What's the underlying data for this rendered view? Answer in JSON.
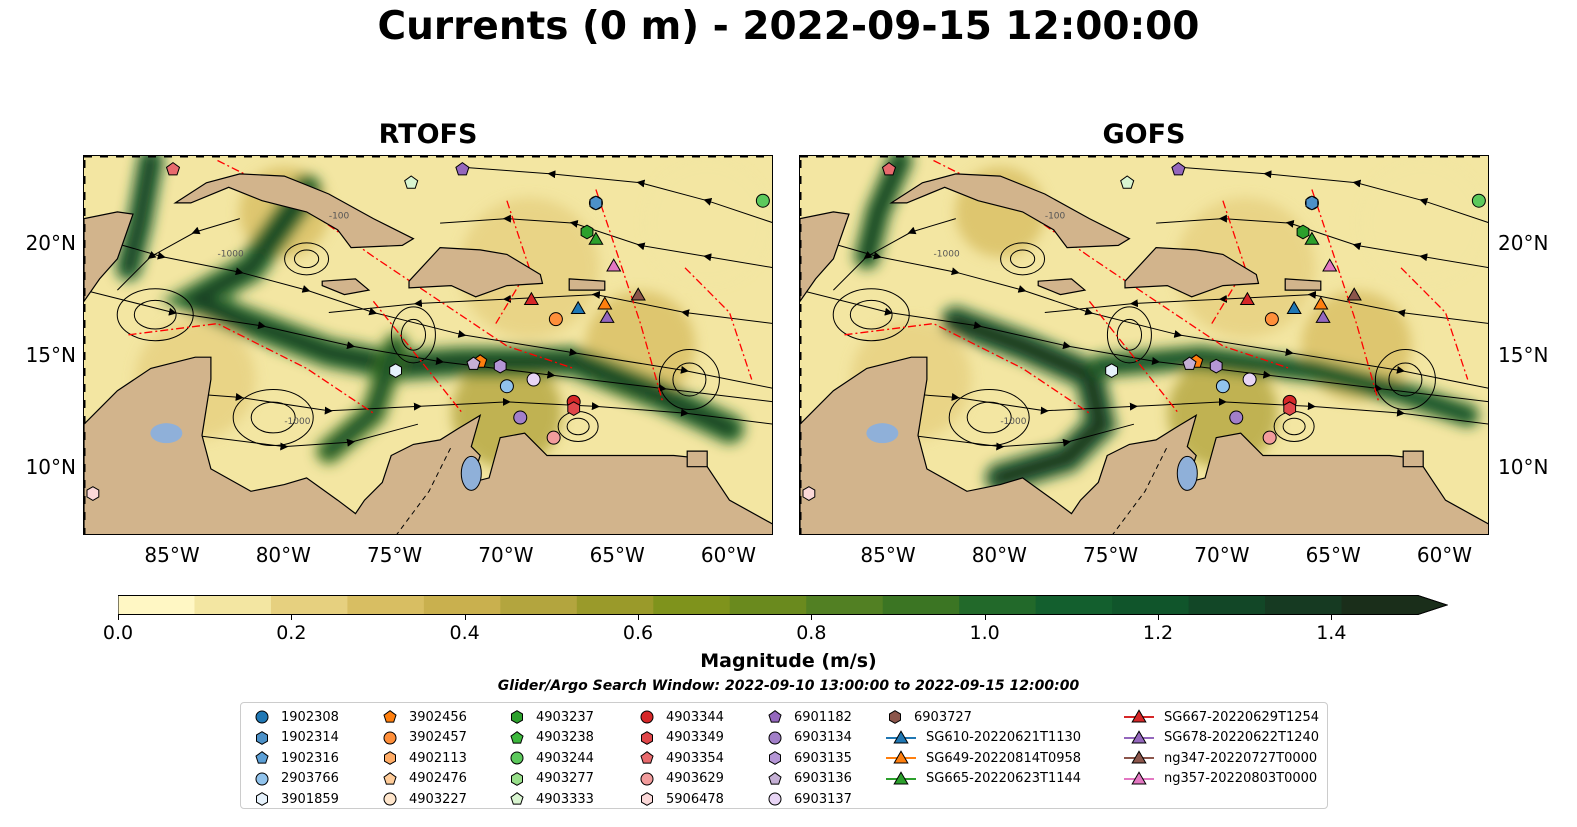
{
  "figure": {
    "title": "Currents (0 m) - 2022-09-15 12:00:00",
    "search_window": "Glider/Argo Search Window: 2022-09-10 13:00:00 to 2022-09-15 12:00:00"
  },
  "panels": [
    {
      "title": "RTOFS"
    },
    {
      "title": "GOFS"
    }
  ],
  "map_axes": {
    "lon_range": [
      -89,
      -58
    ],
    "lat_range": [
      7,
      24
    ],
    "lon_ticks": [
      "85°W",
      "80°W",
      "75°W",
      "70°W",
      "65°W",
      "60°W"
    ],
    "lat_ticks": [
      "20°N",
      "15°N",
      "10°N"
    ],
    "contour_labels": [
      "-100",
      "-1000"
    ]
  },
  "colorbar": {
    "label": "Magnitude (m/s)",
    "ticks": [
      "0.0",
      "0.2",
      "0.4",
      "0.6",
      "0.8",
      "1.0",
      "1.2",
      "1.4"
    ],
    "range": [
      0,
      1.5
    ],
    "extend": "max",
    "colors": [
      "#fff7c4",
      "#f3e6a2",
      "#e6d07f",
      "#d8be62",
      "#c9b04e",
      "#b3a53e",
      "#9a9a2a",
      "#7f931c",
      "#6a8a1e",
      "#528023",
      "#3b7523",
      "#22692a",
      "#135f2e",
      "#10552b",
      "#124727",
      "#163a22",
      "#1a2e1a"
    ]
  },
  "colors": {
    "land": "#d2b48c",
    "lake": "#8fb0d9",
    "eez_line": "#ff0000",
    "streamline": "#000000"
  },
  "legend": {
    "items": [
      {
        "label": "1902308",
        "marker": "circle",
        "color": "#1f77b4"
      },
      {
        "label": "1902314",
        "marker": "hexagon",
        "color": "#4c91c8"
      },
      {
        "label": "1902316",
        "marker": "pentagon",
        "color": "#5b9fd6"
      },
      {
        "label": "2903766",
        "marker": "circle",
        "color": "#91c3ec"
      },
      {
        "label": "3901859",
        "marker": "hexagon",
        "color": "#e6f2fc"
      },
      {
        "label": "3902456",
        "marker": "pentagon",
        "color": "#ff7f0e"
      },
      {
        "label": "3902457",
        "marker": "circle",
        "color": "#ff8f3a"
      },
      {
        "label": "4902113",
        "marker": "hexagon",
        "color": "#ffac66"
      },
      {
        "label": "4902476",
        "marker": "pentagon",
        "color": "#ffcc99"
      },
      {
        "label": "4903227",
        "marker": "circle",
        "color": "#ffe6cc"
      },
      {
        "label": "4903237",
        "marker": "hexagon",
        "color": "#2ca02c"
      },
      {
        "label": "4903238",
        "marker": "pentagon",
        "color": "#3db83d"
      },
      {
        "label": "4903244",
        "marker": "circle",
        "color": "#5cc95c"
      },
      {
        "label": "4903277",
        "marker": "hexagon",
        "color": "#98df8a"
      },
      {
        "label": "4903333",
        "marker": "pentagon",
        "color": "#d9f5d0"
      },
      {
        "label": "4903344",
        "marker": "circle",
        "color": "#d62728"
      },
      {
        "label": "4903349",
        "marker": "hexagon",
        "color": "#e0474a"
      },
      {
        "label": "4903354",
        "marker": "pentagon",
        "color": "#e86a6d"
      },
      {
        "label": "4903629",
        "marker": "circle",
        "color": "#f29c9c"
      },
      {
        "label": "5906478",
        "marker": "hexagon",
        "color": "#fbd8d8"
      },
      {
        "label": "6901182",
        "marker": "pentagon",
        "color": "#9467bd"
      },
      {
        "label": "6903134",
        "marker": "circle",
        "color": "#a27fc9"
      },
      {
        "label": "6903135",
        "marker": "hexagon",
        "color": "#b596d6"
      },
      {
        "label": "6903136",
        "marker": "pentagon",
        "color": "#c5b0d5"
      },
      {
        "label": "6903137",
        "marker": "circle",
        "color": "#e8d5f5"
      },
      {
        "label": "6903727",
        "marker": "hexagon",
        "color": "#8c564b"
      },
      {
        "label": "SG610-20220621T1130",
        "marker": "triangle-line",
        "color": "#1f77b4"
      },
      {
        "label": "SG649-20220814T0958",
        "marker": "triangle-line",
        "color": "#ff7f0e"
      },
      {
        "label": "SG665-20220623T1144",
        "marker": "triangle-line",
        "color": "#2ca02c"
      },
      {
        "label": "SG667-20220629T1254",
        "marker": "triangle-line",
        "color": "#d62728"
      },
      {
        "label": "SG678-20220622T1240",
        "marker": "triangle-line",
        "color": "#9467bd"
      },
      {
        "label": "ng347-20220727T0000",
        "marker": "triangle-line",
        "color": "#8c564b"
      },
      {
        "label": "ng357-20220803T0000",
        "marker": "triangle-line",
        "color": "#e377c2"
      }
    ]
  },
  "platforms": [
    {
      "id": "1902308",
      "lon": -66.0,
      "lat": 21.9
    },
    {
      "id": "1902314",
      "lon": -66.0,
      "lat": 21.9
    },
    {
      "id": "2903766",
      "lon": -70.0,
      "lat": 13.7
    },
    {
      "id": "3901859",
      "lon": -75.0,
      "lat": 14.4
    },
    {
      "id": "3902456",
      "lon": -71.2,
      "lat": 14.8
    },
    {
      "id": "3902457",
      "lon": -67.8,
      "lat": 16.7
    },
    {
      "id": "4903237",
      "lon": -66.4,
      "lat": 20.6
    },
    {
      "id": "4903244",
      "lon": -58.5,
      "lat": 22.0
    },
    {
      "id": "4903333",
      "lon": -74.3,
      "lat": 22.8
    },
    {
      "id": "4903344",
      "lon": -67.0,
      "lat": 13.0
    },
    {
      "id": "4903349",
      "lon": -67.0,
      "lat": 12.7
    },
    {
      "id": "4903354",
      "lon": -85.0,
      "lat": 23.4
    },
    {
      "id": "4903629",
      "lon": -67.9,
      "lat": 11.4
    },
    {
      "id": "5906478",
      "lon": -88.6,
      "lat": 8.9
    },
    {
      "id": "6901182",
      "lon": -72.0,
      "lat": 23.4
    },
    {
      "id": "6903134",
      "lon": -69.4,
      "lat": 12.3
    },
    {
      "id": "6903135",
      "lon": -70.3,
      "lat": 14.6
    },
    {
      "id": "6903136",
      "lon": -71.5,
      "lat": 14.7
    },
    {
      "id": "6903137",
      "lon": -68.8,
      "lat": 14.0
    },
    {
      "id": "SG610-20220621T1130",
      "lon": -66.8,
      "lat": 17.2
    },
    {
      "id": "SG649-20220814T0958",
      "lon": -65.6,
      "lat": 17.4
    },
    {
      "id": "SG665-20220623T1144",
      "lon": -66.0,
      "lat": 20.3
    },
    {
      "id": "SG667-20220629T1254",
      "lon": -68.9,
      "lat": 17.6
    },
    {
      "id": "SG678-20220622T1240",
      "lon": -65.5,
      "lat": 16.8
    },
    {
      "id": "ng347-20220727T0000",
      "lon": -64.1,
      "lat": 17.8
    },
    {
      "id": "ng357-20220803T0000",
      "lon": -65.2,
      "lat": 19.1
    }
  ]
}
